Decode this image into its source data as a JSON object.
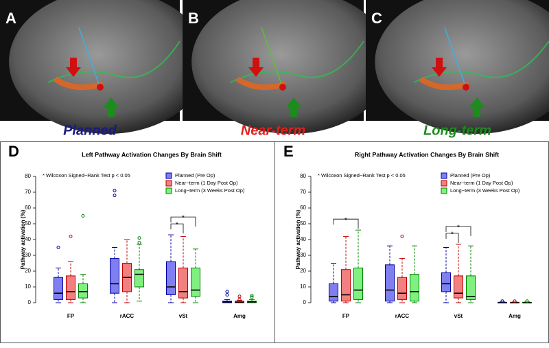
{
  "panels": [
    {
      "letter": "A",
      "caption": "Planned",
      "color": "#1a1a80"
    },
    {
      "letter": "B",
      "caption": "Near-term",
      "color": "#e0201c"
    },
    {
      "letter": "C",
      "caption": "Long-term",
      "color": "#1e8a1e"
    }
  ],
  "chart_data": [
    {
      "type": "box",
      "letter": "D",
      "title": "Left Pathway Activation Changes By Brain Shift",
      "annotation": "* Wilcoxon Signed−Rank Test p < 0.05",
      "ylabel": "Pathway activation (%)",
      "categories": [
        "FP",
        "rACC",
        "vSt",
        "Amg"
      ],
      "ylim": [
        0,
        80
      ],
      "yticks": [
        0,
        10,
        20,
        30,
        40,
        50,
        60,
        70,
        80
      ],
      "series": [
        {
          "name": "Planned (Pre Op)",
          "color": "#0000a0",
          "fill": "#7f7ff2",
          "values": [
            {
              "whislo": 0,
              "q1": 2,
              "med": 6,
              "q3": 16,
              "whishi": 22,
              "fliers": [
                35
              ]
            },
            {
              "whislo": 0,
              "q1": 6,
              "med": 12,
              "q3": 28,
              "whishi": 35,
              "fliers": [
                68,
                71
              ]
            },
            {
              "whislo": 0,
              "q1": 5,
              "med": 10,
              "q3": 26,
              "whishi": 43,
              "fliers": []
            },
            {
              "whislo": 0,
              "q1": 0,
              "med": 0.5,
              "q3": 1,
              "whishi": 2,
              "fliers": [
                5,
                7
              ]
            }
          ]
        },
        {
          "name": "Near−term (1 Day Post Op)",
          "color": "#c00000",
          "fill": "#f28080",
          "values": [
            {
              "whislo": 0,
              "q1": 2,
              "med": 7,
              "q3": 17,
              "whishi": 26,
              "fliers": [
                42
              ]
            },
            {
              "whislo": 0,
              "q1": 7,
              "med": 16,
              "q3": 25,
              "whishi": 40,
              "fliers": []
            },
            {
              "whislo": 0,
              "q1": 3,
              "med": 7,
              "q3": 22,
              "whishi": 42,
              "fliers": []
            },
            {
              "whislo": 0,
              "q1": 0,
              "med": 0.3,
              "q3": 1,
              "whishi": 1.5,
              "fliers": [
                2,
                4
              ]
            }
          ]
        },
        {
          "name": "Long−term (3 Weeks Post Op)",
          "color": "#008000",
          "fill": "#80f080",
          "values": [
            {
              "whislo": 0,
              "q1": 3,
              "med": 7,
              "q3": 12,
              "whishi": 18,
              "fliers": [
                55
              ]
            },
            {
              "whislo": 1,
              "q1": 10,
              "med": 18,
              "q3": 21,
              "whishi": 37,
              "fliers": [
                38,
                41
              ]
            },
            {
              "whislo": 0,
              "q1": 4,
              "med": 8,
              "q3": 22,
              "whishi": 34,
              "fliers": []
            },
            {
              "whislo": 0,
              "q1": 0,
              "med": 0.5,
              "q3": 1,
              "whishi": 2,
              "fliers": [
                3.5,
                4.5
              ]
            }
          ]
        }
      ],
      "significance": [
        {
          "category": "vSt",
          "pair": [
            "Planned (Pre Op)",
            "Near−term (1 Day Post Op)"
          ],
          "label": "*"
        },
        {
          "category": "vSt",
          "pair": [
            "Planned (Pre Op)",
            "Long−term (3 Weeks Post Op)"
          ],
          "label": "*"
        }
      ]
    },
    {
      "type": "box",
      "letter": "E",
      "title": "Right Pathway Activation Changes By Brain Shift",
      "annotation": "* Wilcoxon Signed−Rank Test p < 0.05",
      "ylabel": "Pathway activation (%)",
      "categories": [
        "FP",
        "rACC",
        "vSt",
        "Amg"
      ],
      "ylim": [
        0,
        80
      ],
      "yticks": [
        0,
        10,
        20,
        30,
        40,
        50,
        60,
        70,
        80
      ],
      "series": [
        {
          "name": "Planned (Pre Op)",
          "color": "#0000a0",
          "fill": "#7f7ff2",
          "values": [
            {
              "whislo": 0,
              "q1": 1,
              "med": 4,
              "q3": 12,
              "whishi": 25,
              "fliers": []
            },
            {
              "whislo": 0,
              "q1": 1,
              "med": 8,
              "q3": 24,
              "whishi": 36,
              "fliers": []
            },
            {
              "whislo": 0,
              "q1": 7,
              "med": 12,
              "q3": 19,
              "whishi": 35,
              "fliers": []
            },
            {
              "whislo": 0,
              "q1": 0,
              "med": 0,
              "q3": 0.3,
              "whishi": 0.5,
              "fliers": [
                1
              ]
            }
          ]
        },
        {
          "name": "Near−term (1 Day Post Op)",
          "color": "#c00000",
          "fill": "#f28080",
          "values": [
            {
              "whislo": 0,
              "q1": 1,
              "med": 5,
              "q3": 21,
              "whishi": 42,
              "fliers": []
            },
            {
              "whislo": 0,
              "q1": 2,
              "med": 6,
              "q3": 16,
              "whishi": 28,
              "fliers": [
                42
              ]
            },
            {
              "whislo": 0,
              "q1": 3,
              "med": 6,
              "q3": 17,
              "whishi": 37,
              "fliers": []
            },
            {
              "whislo": 0,
              "q1": 0,
              "med": 0,
              "q3": 0.3,
              "whishi": 0.5,
              "fliers": [
                1
              ]
            }
          ]
        },
        {
          "name": "Long−term (3 Weeks Post Op)",
          "color": "#008000",
          "fill": "#80f080",
          "values": [
            {
              "whislo": 0,
              "q1": 2,
              "med": 8,
              "q3": 22,
              "whishi": 46,
              "fliers": []
            },
            {
              "whislo": 0,
              "q1": 1,
              "med": 7,
              "q3": 18,
              "whishi": 36,
              "fliers": []
            },
            {
              "whislo": 0,
              "q1": 2,
              "med": 4,
              "q3": 17,
              "whishi": 36,
              "fliers": []
            },
            {
              "whislo": 0,
              "q1": 0,
              "med": 0,
              "q3": 0.3,
              "whishi": 0.5,
              "fliers": [
                1
              ]
            }
          ]
        }
      ],
      "significance": [
        {
          "category": "FP",
          "pair": [
            "Planned (Pre Op)",
            "Long−term (3 Weeks Post Op)"
          ],
          "label": "*"
        },
        {
          "category": "vSt",
          "pair": [
            "Planned (Pre Op)",
            "Near−term (1 Day Post Op)"
          ],
          "label": "*"
        },
        {
          "category": "vSt",
          "pair": [
            "Planned (Pre Op)",
            "Long−term (3 Weeks Post Op)"
          ],
          "label": "*"
        }
      ]
    }
  ]
}
